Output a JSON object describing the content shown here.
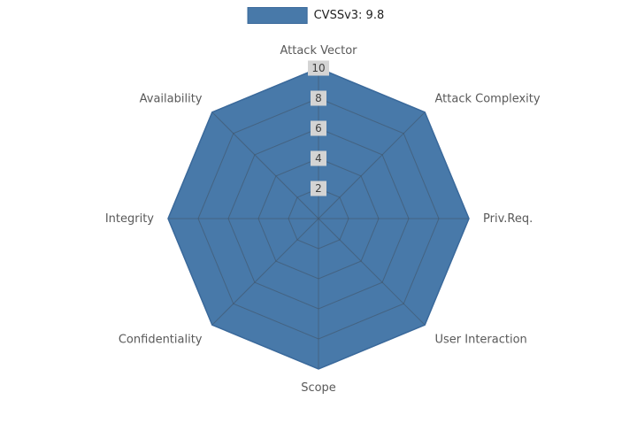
{
  "legend": {
    "label": "CVSSv3: 9.8",
    "position": "top-center"
  },
  "chart_data": {
    "type": "radar",
    "categories": [
      "Attack Vector",
      "Attack Complexity",
      "Priv.Req.",
      "User Interaction",
      "Scope",
      "Confidentiality",
      "Integrity",
      "Availability"
    ],
    "series": [
      {
        "name": "CVSSv3: 9.8",
        "values": [
          10,
          10,
          10,
          10,
          10,
          10,
          10,
          10
        ]
      }
    ],
    "radial_ticks": [
      2,
      4,
      6,
      8,
      10
    ],
    "rmin": 0,
    "rmax": 10,
    "grid": true,
    "legend_position": "top",
    "fill_color": "#4879a9",
    "line_color": "#3a699b",
    "grid_color": "rgba(66, 82, 99, 0.55)",
    "tick_bg": "#d4d4d4",
    "tick_color": "#3f3f3f",
    "label_color": "#595959",
    "background": "#ffffff"
  }
}
